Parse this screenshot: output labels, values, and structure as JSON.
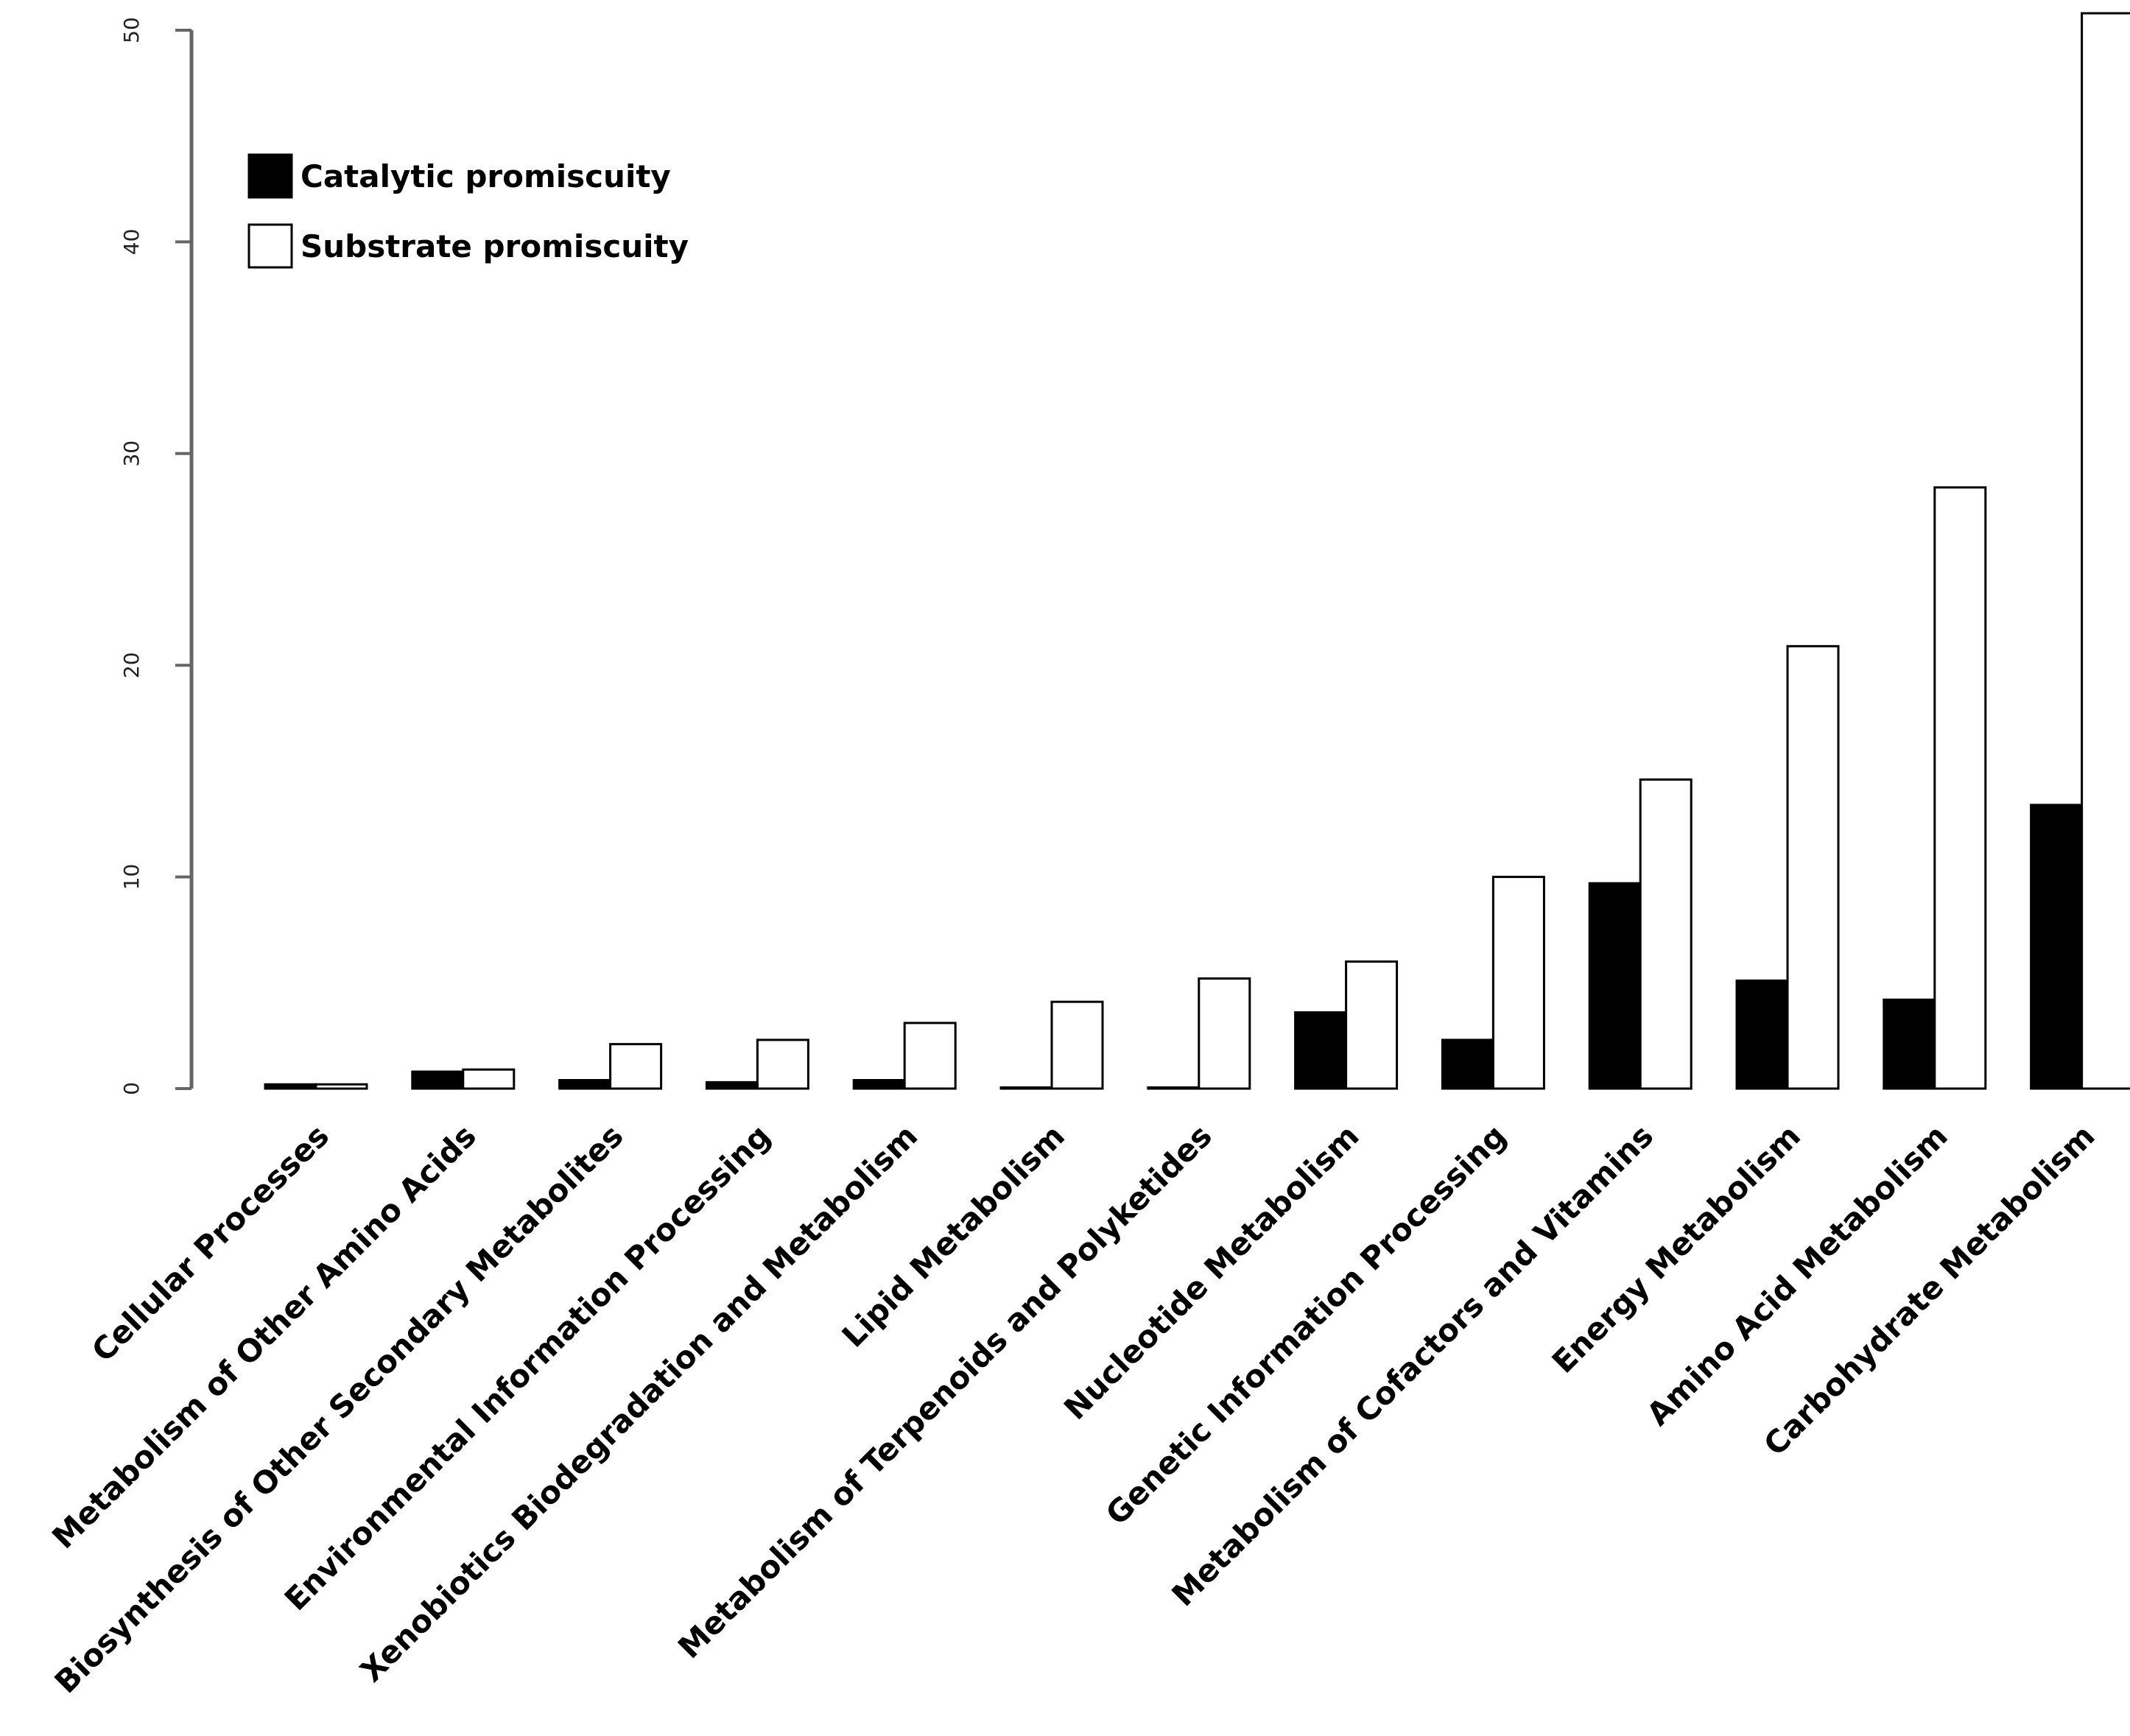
{
  "chart_data": {
    "type": "bar",
    "title": "",
    "xlabel": "",
    "ylabel": "",
    "ylim": [
      0,
      50
    ],
    "yticks": [
      0,
      10,
      20,
      30,
      40,
      50
    ],
    "categories": [
      "Cellular Processes",
      "Metabolism of Other Amino Acids",
      "Biosynthesis of Other Secondary Metabolites",
      "Environmental Information Processing",
      "Xenobiotics Biodegradation and Metabolism",
      "Lipid Metabolism",
      "Metabolism of Terpenoids and Polyketides",
      "Nucleotide Metabolism",
      "Genetic Information Processing",
      "Metabolism of Cofactors and Vitamins",
      "Energy Metabolism",
      "Amino Acid Metabolism",
      "Carbohydrate Metabolism"
    ],
    "series": [
      {
        "name": "Catalytic promiscuity",
        "color": "#000000",
        "values": [
          0.2,
          0.8,
          0.4,
          0.3,
          0.4,
          0.05,
          0.05,
          3.6,
          2.3,
          9.7,
          5.1,
          4.2,
          13.4
        ]
      },
      {
        "name": "Substrate promiscuity",
        "color": "#ffffff",
        "values": [
          0.2,
          0.9,
          2.1,
          2.3,
          3.1,
          4.1,
          5.2,
          6.0,
          10.0,
          14.6,
          20.9,
          28.4,
          50.8
        ]
      }
    ],
    "legend_position": "top-left"
  }
}
